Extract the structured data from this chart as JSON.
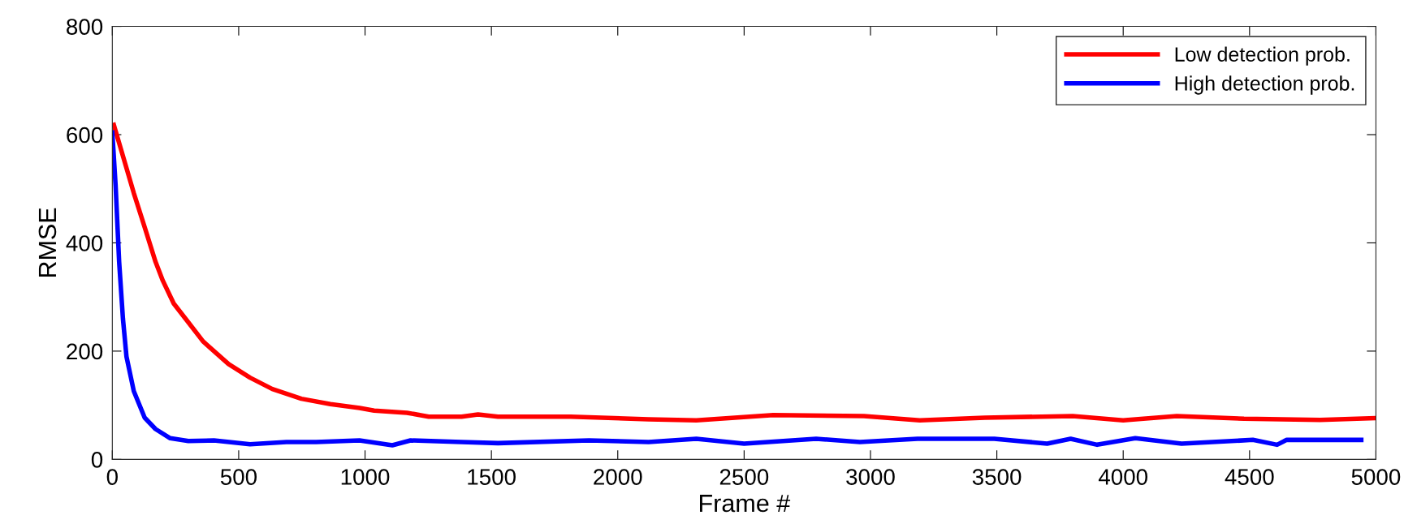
{
  "chart_data": {
    "type": "line",
    "xlabel": "Frame #",
    "ylabel": "RMSE",
    "xlim": [
      0,
      5000
    ],
    "ylim": [
      0,
      800
    ],
    "xticks": [
      0,
      500,
      1000,
      1500,
      2000,
      2500,
      3000,
      3500,
      4000,
      4500,
      5000
    ],
    "yticks": [
      0,
      200,
      400,
      600,
      800
    ],
    "grid": false,
    "legend": "top right",
    "marker": "none",
    "line_style": "solid",
    "series": [
      {
        "name": "Low detection prob.",
        "color": "#ff0000",
        "x": [
          6,
          85,
          128,
          171,
          200,
          243,
          301,
          359,
          460,
          545,
          633,
          748,
          863,
          978,
          1036,
          1166,
          1252,
          1382,
          1447,
          1526,
          1814,
          2122,
          2311,
          2615,
          2974,
          3195,
          3452,
          3800,
          4000,
          4019,
          4212,
          4478,
          4779,
          4990
        ],
        "values": [
          618,
          492,
          429,
          365,
          330,
          288,
          253,
          218,
          176,
          151,
          130,
          112,
          102,
          95,
          90,
          86,
          79,
          79,
          83,
          79,
          79,
          74,
          72,
          82,
          80,
          72,
          77,
          80,
          72,
          73,
          80,
          75,
          73,
          76
        ]
      },
      {
        "name": "High detection prob.",
        "color": "#0000ff",
        "x": [
          0,
          13,
          27,
          42,
          56,
          85,
          128,
          171,
          229,
          301,
          402,
          545,
          689,
          806,
          978,
          1108,
          1180,
          1382,
          1526,
          1886,
          2122,
          2311,
          2500,
          2785,
          2958,
          3186,
          3490,
          3699,
          3792,
          3897,
          4048,
          4231,
          4513,
          4609,
          4647,
          4942
        ],
        "values": [
          604,
          506,
          365,
          260,
          190,
          126,
          77,
          56,
          39,
          34,
          35,
          28,
          32,
          32,
          35,
          26,
          35,
          32,
          30,
          35,
          32,
          38,
          29,
          38,
          32,
          38,
          38,
          29,
          38,
          27,
          39,
          29,
          36,
          27,
          36,
          36
        ]
      }
    ]
  }
}
